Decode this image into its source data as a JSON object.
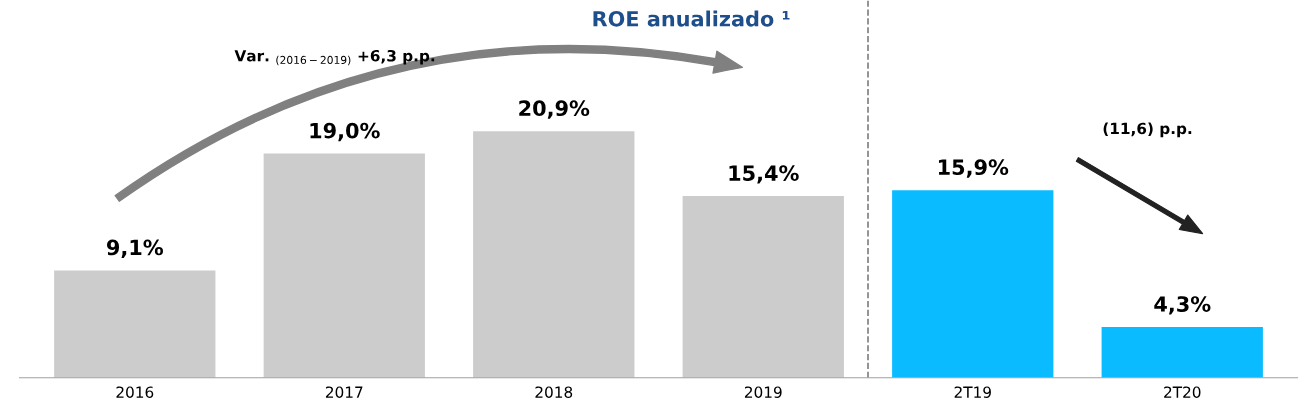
{
  "chart_data": {
    "type": "bar",
    "title": "ROE anualizado ¹",
    "categories": [
      "2016",
      "2017",
      "2018",
      "2019",
      "2T19",
      "2T20"
    ],
    "values": [
      9.1,
      19.0,
      20.9,
      15.4,
      15.9,
      4.3
    ],
    "colors": [
      "#cccccc",
      "#cccccc",
      "#cccccc",
      "#cccccc",
      "#0abcff",
      "#0abcff"
    ],
    "value_labels": [
      "9,1%",
      "19,0%",
      "20,9%",
      "15,4%",
      "15,9%",
      "4,3%"
    ],
    "annotations": [
      "Var. $_{(2016−2019)}$ +6,3 p.p.",
      "(11,6) p.p."
    ],
    "grid": false
  }
}
